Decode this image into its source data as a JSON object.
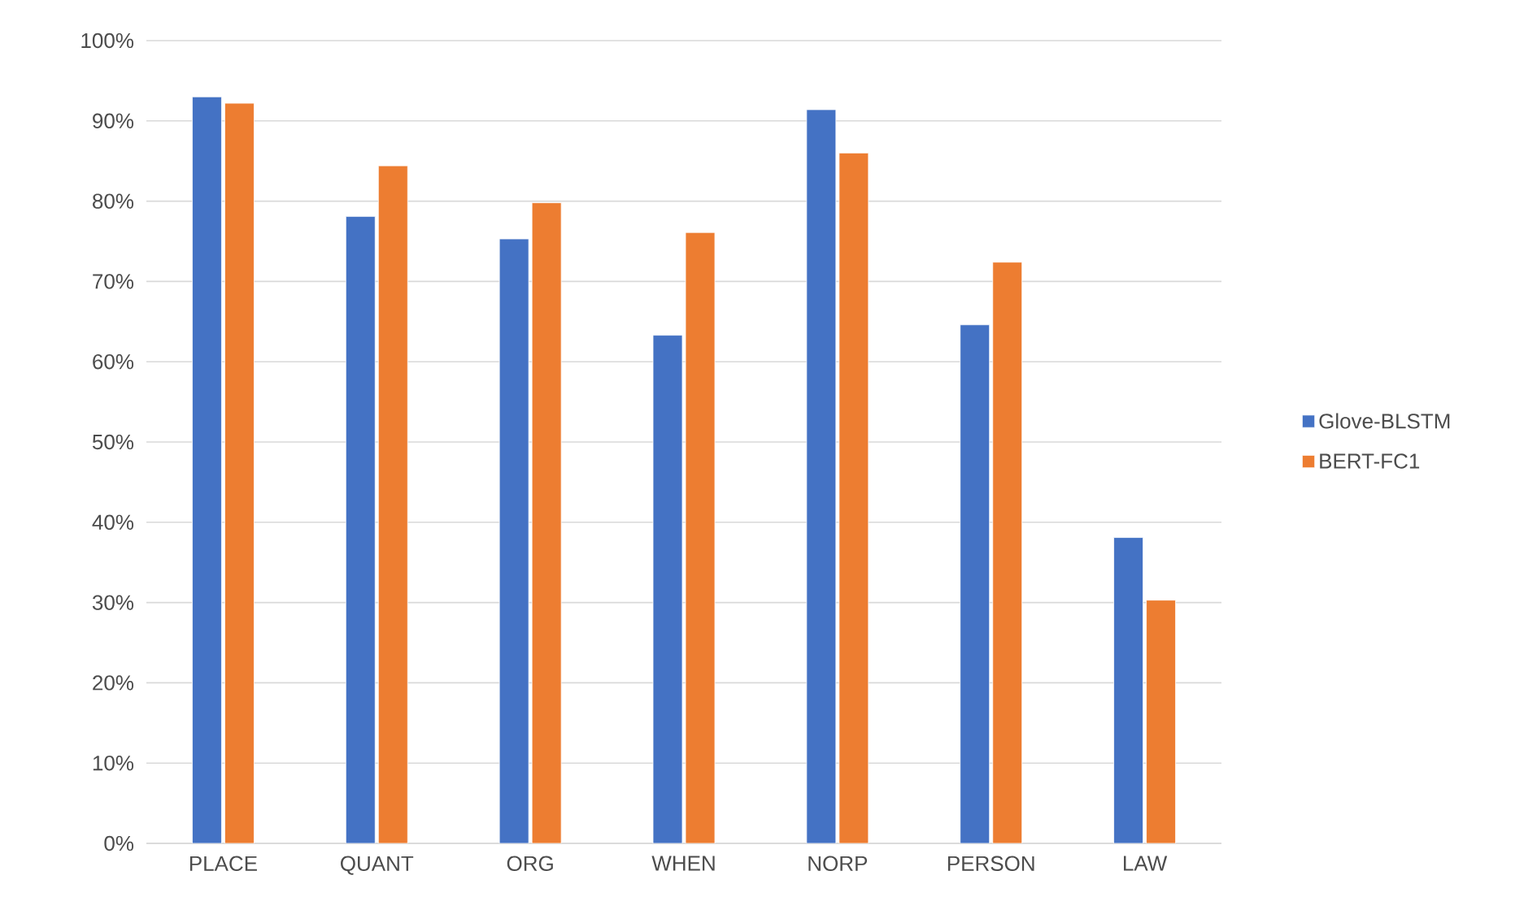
{
  "chart_data": {
    "type": "bar",
    "categories": [
      "PLACE",
      "QUANT",
      "ORG",
      "WHEN",
      "NORP",
      "PERSON",
      "LAW"
    ],
    "series": [
      {
        "name": "Glove-BLSTM",
        "color": "#4472c4",
        "values": [
          93.0,
          78.1,
          75.3,
          63.3,
          91.4,
          64.6,
          38.1
        ]
      },
      {
        "name": "BERT-FC1",
        "color": "#ed7d31",
        "values": [
          92.2,
          84.4,
          79.8,
          76.1,
          86.0,
          72.4,
          30.3
        ]
      }
    ],
    "ylim": [
      0,
      100
    ],
    "yticks": [
      {
        "value": 0,
        "label": "0%"
      },
      {
        "value": 10,
        "label": "10%"
      },
      {
        "value": 20,
        "label": "20%"
      },
      {
        "value": 30,
        "label": "30%"
      },
      {
        "value": 40,
        "label": "40%"
      },
      {
        "value": 50,
        "label": "50%"
      },
      {
        "value": 60,
        "label": "60%"
      },
      {
        "value": 70,
        "label": "70%"
      },
      {
        "value": 80,
        "label": "80%"
      },
      {
        "value": 90,
        "label": "90%"
      },
      {
        "value": 100,
        "label": "100%"
      }
    ],
    "grid": "y",
    "legend": "right"
  }
}
